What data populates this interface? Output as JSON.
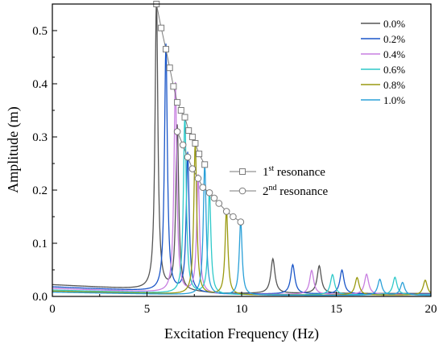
{
  "chart_data": {
    "type": "line",
    "xlabel": "Excitation Frequency (Hz)",
    "ylabel": "Amplitude (m)",
    "xlim": [
      0,
      20
    ],
    "ylim": [
      0,
      0.55
    ],
    "xticks": [
      0,
      5,
      10,
      15,
      20
    ],
    "yticks": [
      0.0,
      0.1,
      0.2,
      0.3,
      0.4,
      0.5
    ],
    "ytick_labels": [
      "0.0",
      "0.1",
      "0.2",
      "0.3",
      "0.4",
      "0.5"
    ],
    "grid": false,
    "legend_position": "top-right",
    "series": [
      {
        "name": "0.0%",
        "color": "#555555",
        "peaks": [
          {
            "f": 5.5,
            "a": 0.55,
            "w": 0.09
          },
          {
            "f": 6.6,
            "a": 0.31,
            "w": 0.09
          },
          {
            "f": 11.65,
            "a": 0.065,
            "w": 0.13
          },
          {
            "f": 14.1,
            "a": 0.052,
            "w": 0.13
          }
        ],
        "base": 0.022
      },
      {
        "name": "0.2%",
        "color": "#1a56c8",
        "peaks": [
          {
            "f": 6.0,
            "a": 0.465,
            "w": 0.09
          },
          {
            "f": 7.15,
            "a": 0.262,
            "w": 0.09
          },
          {
            "f": 12.7,
            "a": 0.055,
            "w": 0.13
          },
          {
            "f": 15.3,
            "a": 0.045,
            "w": 0.13
          }
        ],
        "base": 0.018
      },
      {
        "name": "0.4%",
        "color": "#c77ee0",
        "peaks": [
          {
            "f": 6.5,
            "a": 0.395,
            "w": 0.09
          },
          {
            "f": 7.7,
            "a": 0.222,
            "w": 0.09
          },
          {
            "f": 13.7,
            "a": 0.045,
            "w": 0.13
          },
          {
            "f": 16.6,
            "a": 0.038,
            "w": 0.13
          }
        ],
        "base": 0.015
      },
      {
        "name": "0.6%",
        "color": "#2ec9c9",
        "peaks": [
          {
            "f": 7.0,
            "a": 0.337,
            "w": 0.09
          },
          {
            "f": 8.3,
            "a": 0.195,
            "w": 0.09
          },
          {
            "f": 14.8,
            "a": 0.038,
            "w": 0.13
          },
          {
            "f": 18.1,
            "a": 0.033,
            "w": 0.13
          }
        ],
        "base": 0.012
      },
      {
        "name": "0.8%",
        "color": "#9a9a10",
        "peaks": [
          {
            "f": 7.55,
            "a": 0.288,
            "w": 0.09
          },
          {
            "f": 9.2,
            "a": 0.16,
            "w": 0.09
          },
          {
            "f": 16.1,
            "a": 0.033,
            "w": 0.13
          },
          {
            "f": 19.7,
            "a": 0.028,
            "w": 0.13
          }
        ],
        "base": 0.01
      },
      {
        "name": "1.0%",
        "color": "#2aa0d8",
        "peaks": [
          {
            "f": 8.05,
            "a": 0.248,
            "w": 0.09
          },
          {
            "f": 9.95,
            "a": 0.14,
            "w": 0.09
          },
          {
            "f": 17.3,
            "a": 0.03,
            "w": 0.13
          },
          {
            "f": 18.5,
            "a": 0.024,
            "w": 0.13
          }
        ],
        "base": 0.008
      }
    ],
    "resonance_series": [
      {
        "name_base": "1",
        "name_sup": "st",
        "name_rest": " resonance",
        "marker": "square",
        "color": "#7a7a7a",
        "x": [
          5.5,
          5.75,
          6.0,
          6.2,
          6.4,
          6.6,
          6.8,
          7.0,
          7.2,
          7.4,
          7.55,
          7.75,
          8.05
        ],
        "y": [
          0.55,
          0.505,
          0.465,
          0.43,
          0.395,
          0.365,
          0.35,
          0.337,
          0.312,
          0.3,
          0.288,
          0.268,
          0.248
        ]
      },
      {
        "name_base": "2",
        "name_sup": "nd",
        "name_rest": " resonance",
        "marker": "circle",
        "color": "#7a7a7a",
        "x": [
          6.6,
          6.9,
          7.15,
          7.4,
          7.7,
          7.95,
          8.3,
          8.55,
          8.8,
          9.2,
          9.55,
          9.95
        ],
        "y": [
          0.31,
          0.285,
          0.262,
          0.24,
          0.222,
          0.205,
          0.195,
          0.185,
          0.175,
          0.16,
          0.15,
          0.14
        ]
      }
    ]
  }
}
